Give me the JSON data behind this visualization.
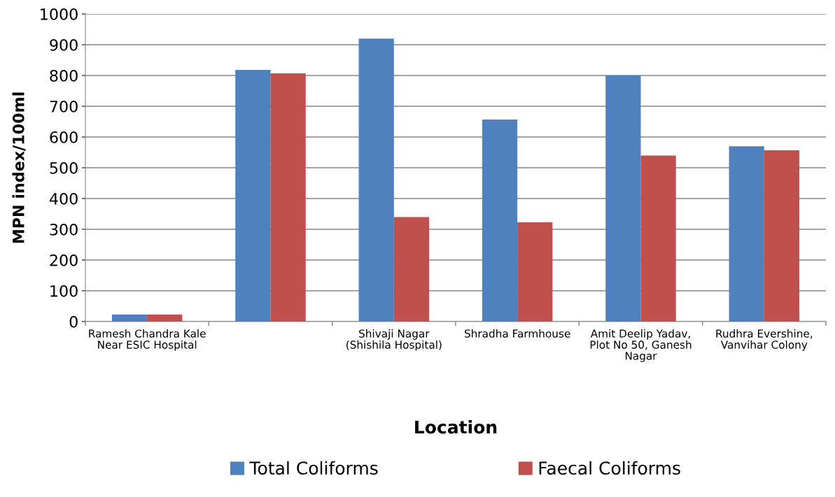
{
  "chart_data": {
    "type": "bar",
    "xlabel": "Location",
    "ylabel": "MPN index/100ml",
    "categories": [
      "Ramesh Chandra Kale Near ESIC Hospital",
      null,
      "Shivaji Nagar (Shishila Hospital)",
      "Shradha Farmhouse",
      "Amit Deelip Yadav, Plot No 50, Ganesh Nagar",
      "Rudhra Evershine, Vanvihar Colony"
    ],
    "series": [
      {
        "name": "Total Coliforms",
        "color": "#4f81bd",
        "values": [
          23,
          818,
          920,
          657,
          800,
          570
        ]
      },
      {
        "name": "Faecal Coliforms",
        "color": "#c0504d",
        "values": [
          23,
          807,
          340,
          323,
          540,
          557
        ]
      }
    ],
    "ylim": [
      0,
      1000
    ],
    "yticks": [
      0,
      100,
      200,
      300,
      400,
      500,
      600,
      700,
      800,
      900,
      1000
    ],
    "grid": "y",
    "legend": "bottom"
  }
}
